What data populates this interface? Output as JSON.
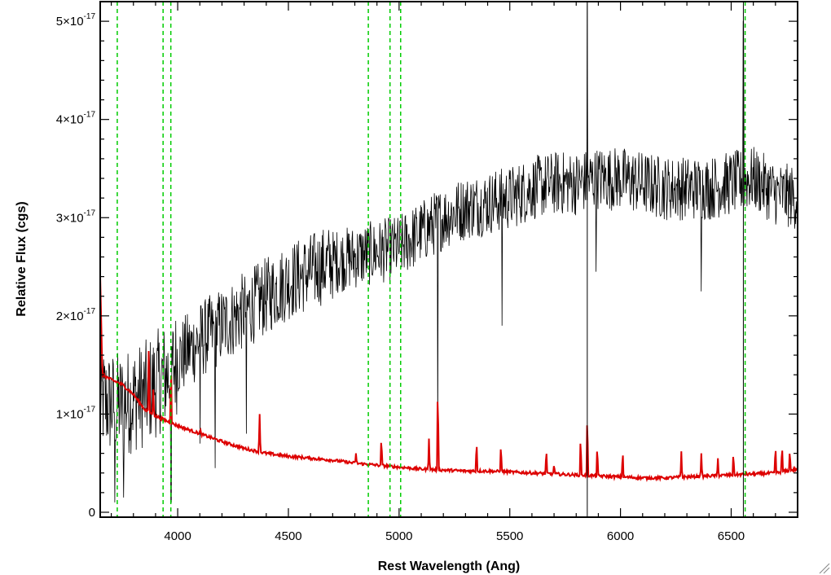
{
  "chart_data": {
    "type": "line",
    "xlabel": "Rest Wavelength (Ang)",
    "ylabel": "Relative Flux (cgs)",
    "xlim": [
      3650,
      6800
    ],
    "ylim": [
      -5e-19,
      5.2e-17
    ],
    "x_ticks": [
      {
        "value": 4000,
        "label": "4000"
      },
      {
        "value": 4500,
        "label": "4500"
      },
      {
        "value": 5000,
        "label": "5000"
      },
      {
        "value": 5500,
        "label": "5500"
      },
      {
        "value": 6000,
        "label": "6000"
      },
      {
        "value": 6500,
        "label": "6500"
      }
    ],
    "y_ticks": [
      {
        "value": 0,
        "mant": "0",
        "exp": ""
      },
      {
        "value": 1e-17,
        "mant": "1×10",
        "exp": "-17"
      },
      {
        "value": 2e-17,
        "mant": "2×10",
        "exp": "-17"
      },
      {
        "value": 3e-17,
        "mant": "3×10",
        "exp": "-17"
      },
      {
        "value": 4e-17,
        "mant": "4×10",
        "exp": "-17"
      },
      {
        "value": 5e-17,
        "mant": "5×10",
        "exp": "-17"
      }
    ],
    "grid": false,
    "colors": {
      "spectrum": "#000000",
      "model": "#dd0000",
      "line_markers": "#00cc00"
    },
    "emission_line_markers": [
      3727,
      3934,
      3969,
      4861,
      4959,
      5007,
      6563
    ],
    "vertical_lines": [
      5850,
      6555
    ],
    "series": [
      {
        "kind": "observed-spectrum",
        "color": "#000000",
        "x": [
          3650,
          3700,
          3750,
          3800,
          3850,
          3900,
          3950,
          4000,
          4100,
          4200,
          4300,
          4400,
          4500,
          4600,
          4700,
          4800,
          4900,
          5000,
          5100,
          5200,
          5300,
          5400,
          5500,
          5600,
          5700,
          5800,
          5900,
          6000,
          6100,
          6200,
          6300,
          6400,
          6500,
          6600,
          6700,
          6800
        ],
        "y": [
          1.15e-17,
          1.1e-17,
          1.1e-17,
          1.15e-17,
          1.2e-17,
          1.3e-17,
          1.4e-17,
          1.55e-17,
          1.75e-17,
          1.9e-17,
          2.05e-17,
          2.2e-17,
          2.35e-17,
          2.45e-17,
          2.55e-17,
          2.6e-17,
          2.65e-17,
          2.7e-17,
          2.85e-17,
          3e-17,
          3.1e-17,
          3.15e-17,
          3.2e-17,
          3.3e-17,
          3.35e-17,
          3.35e-17,
          3.4e-17,
          3.4e-17,
          3.35e-17,
          3.3e-17,
          3.3e-17,
          3.3e-17,
          3.35e-17,
          3.4e-17,
          3.25e-17,
          3.2e-17
        ],
        "features": [
          {
            "x": 3715,
            "y": 1e-18
          },
          {
            "x": 3755,
            "y": 1.5e-18
          },
          {
            "x": 3970,
            "y": 1e-18
          },
          {
            "x": 4100,
            "y": 7e-18
          },
          {
            "x": 4170,
            "y": 4.5e-18
          },
          {
            "x": 4310,
            "y": 8e-18
          },
          {
            "x": 5175,
            "y": 7e-18
          },
          {
            "x": 5465,
            "y": 1.9e-17
          },
          {
            "x": 5890,
            "y": 2.45e-17
          },
          {
            "x": 6365,
            "y": 2.25e-17
          },
          {
            "x": 6555,
            "y": 5e-17
          },
          {
            "x": 5850,
            "y": -5e-19
          },
          {
            "x": 5850,
            "y": 5.2e-17
          }
        ]
      },
      {
        "kind": "model",
        "color": "#dd0000",
        "x": [
          3650,
          3660,
          3700,
          3750,
          3800,
          3850,
          3900,
          3950,
          4000,
          4100,
          4200,
          4300,
          4400,
          4500,
          4600,
          4700,
          4800,
          4900,
          5000,
          5100,
          5200,
          5300,
          5400,
          5500,
          5600,
          5700,
          5800,
          5900,
          6000,
          6100,
          6200,
          6300,
          6400,
          6500,
          6600,
          6700,
          6800
        ],
        "y": [
          2.4e-17,
          1.4e-17,
          1.35e-17,
          1.3e-17,
          1.2e-17,
          1.05e-17,
          9.8e-18,
          9.3e-18,
          8.8e-18,
          8e-18,
          7.2e-18,
          6.5e-18,
          6e-18,
          5.7e-18,
          5.5e-18,
          5.3e-18,
          5e-18,
          4.8e-18,
          4.6e-18,
          4.4e-18,
          4.3e-18,
          4.2e-18,
          4.2e-18,
          4.1e-18,
          4e-18,
          3.9e-18,
          3.8e-18,
          3.7e-18,
          3.6e-18,
          3.5e-18,
          3.5e-18,
          3.6e-18,
          3.7e-18,
          3.8e-18,
          3.9e-18,
          4e-18,
          4.4e-18
        ],
        "spikes": [
          {
            "x": 3870,
            "y": 1.85e-17
          },
          {
            "x": 3890,
            "y": 1.25e-17
          },
          {
            "x": 3970,
            "y": 1.55e-17
          },
          {
            "x": 4102,
            "y": 8.5e-18
          },
          {
            "x": 4370,
            "y": 1e-17
          },
          {
            "x": 4805,
            "y": 6e-18
          },
          {
            "x": 4920,
            "y": 7.8e-18
          },
          {
            "x": 5135,
            "y": 7.5e-18
          },
          {
            "x": 5175,
            "y": 1.35e-17
          },
          {
            "x": 5350,
            "y": 7.5e-18
          },
          {
            "x": 5460,
            "y": 7.2e-18
          },
          {
            "x": 5665,
            "y": 6.6e-18
          },
          {
            "x": 5700,
            "y": 5e-18
          },
          {
            "x": 5820,
            "y": 8e-18
          },
          {
            "x": 5850,
            "y": 1.05e-17
          },
          {
            "x": 5895,
            "y": 7e-18
          },
          {
            "x": 6010,
            "y": 6.5e-18
          },
          {
            "x": 6275,
            "y": 6.2e-18
          },
          {
            "x": 6365,
            "y": 6e-18
          },
          {
            "x": 6440,
            "y": 5.5e-18
          },
          {
            "x": 6510,
            "y": 6.2e-18
          },
          {
            "x": 6700,
            "y": 7e-18
          },
          {
            "x": 6730,
            "y": 7e-18
          },
          {
            "x": 6765,
            "y": 6.5e-18
          }
        ]
      }
    ]
  }
}
